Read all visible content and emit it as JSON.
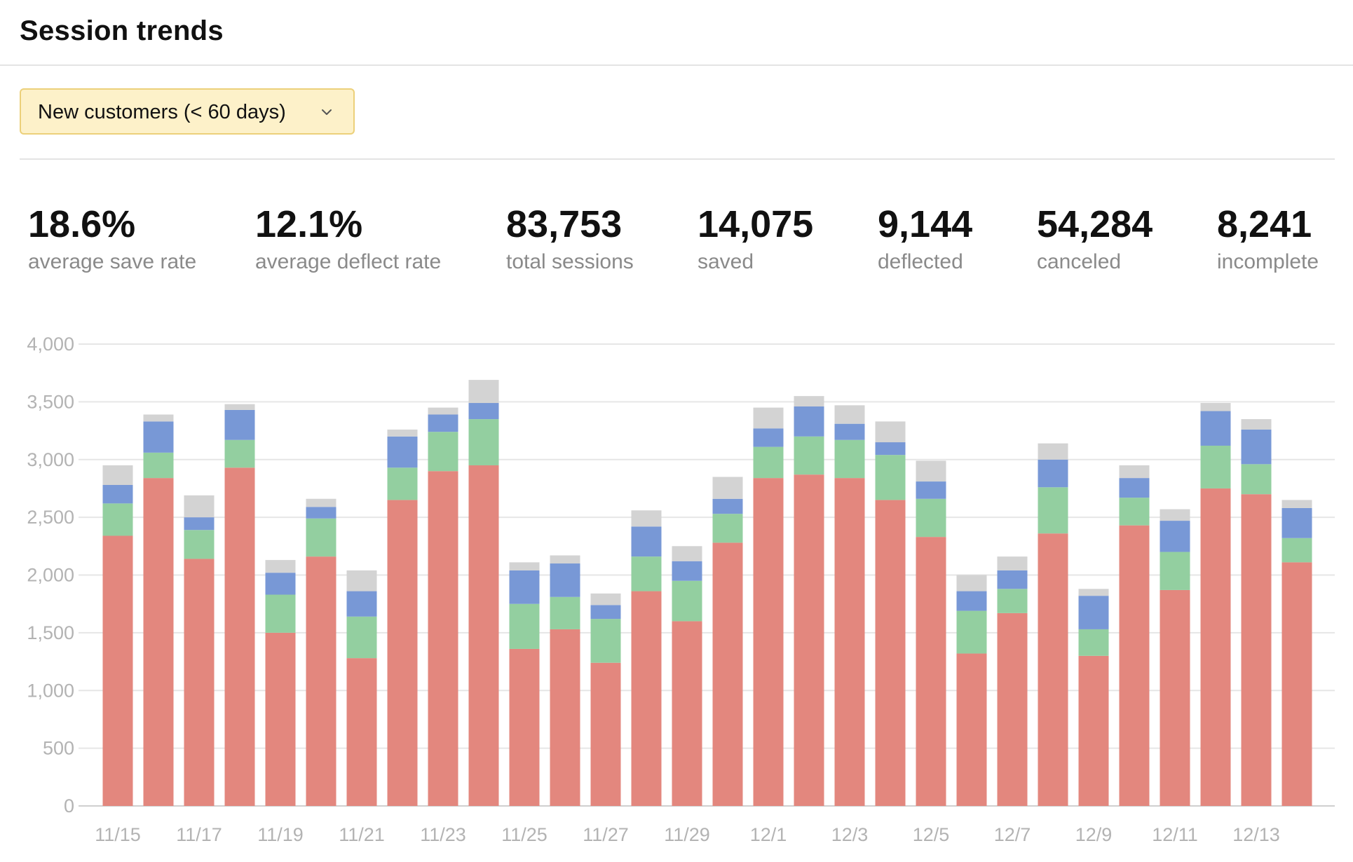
{
  "header": {
    "title": "Session trends"
  },
  "filter": {
    "selected": "New customers (< 60 days)",
    "icon": "chevron-down-icon"
  },
  "stats": [
    {
      "value": "18.6%",
      "label": "average save rate"
    },
    {
      "value": "12.1%",
      "label": "average deflect rate"
    },
    {
      "value": "83,753",
      "label": "total sessions"
    },
    {
      "value": "14,075",
      "label": "saved"
    },
    {
      "value": "9,144",
      "label": "deflected"
    },
    {
      "value": "54,284",
      "label": "canceled"
    },
    {
      "value": "8,241",
      "label": "incomplete"
    }
  ],
  "colors": {
    "canceled": "#e3877e",
    "deflected": "#93cfa0",
    "saved": "#7898d6",
    "incomplete": "#d3d3d3"
  },
  "chart_data": {
    "type": "bar",
    "stacked": true,
    "title": "",
    "xlabel": "",
    "ylabel": "",
    "ylim": [
      0,
      4000
    ],
    "yticks": [
      0,
      500,
      1000,
      1500,
      2000,
      2500,
      3000,
      3500,
      4000
    ],
    "ytick_labels": [
      "0",
      "500",
      "1,000",
      "1,500",
      "2,000",
      "2,500",
      "3,000",
      "3,500",
      "4,000"
    ],
    "grid": true,
    "categories": [
      "11/15",
      "11/16",
      "11/17",
      "11/18",
      "11/19",
      "11/20",
      "11/21",
      "11/22",
      "11/23",
      "11/24",
      "11/25",
      "11/26",
      "11/27",
      "11/28",
      "11/29",
      "11/30",
      "12/1",
      "12/2",
      "12/3",
      "12/4",
      "12/5",
      "12/6",
      "12/7",
      "12/8",
      "12/9",
      "12/10",
      "12/11",
      "12/12",
      "12/13",
      "12/14"
    ],
    "xtick_labels": [
      "11/15",
      "11/17",
      "11/19",
      "11/21",
      "11/23",
      "11/25",
      "11/27",
      "11/29",
      "12/1",
      "12/3",
      "12/5",
      "12/7",
      "12/9",
      "12/11",
      "12/13"
    ],
    "series": [
      {
        "key": "canceled",
        "values": [
          2340,
          2840,
          2140,
          2930,
          1500,
          2160,
          1280,
          2650,
          2900,
          2950,
          1360,
          1530,
          1240,
          1860,
          1600,
          2280,
          2840,
          2870,
          2840,
          2650,
          2330,
          1320,
          1670,
          2360,
          1300,
          2430,
          1870,
          2750,
          2700,
          2110
        ]
      },
      {
        "key": "deflected",
        "values": [
          280,
          220,
          250,
          240,
          330,
          330,
          360,
          280,
          340,
          400,
          390,
          280,
          380,
          300,
          350,
          250,
          270,
          330,
          330,
          390,
          330,
          370,
          210,
          400,
          230,
          240,
          330,
          370,
          260,
          210
        ]
      },
      {
        "key": "saved",
        "values": [
          160,
          270,
          110,
          260,
          190,
          100,
          220,
          270,
          150,
          140,
          290,
          290,
          120,
          260,
          170,
          130,
          160,
          260,
          140,
          110,
          150,
          170,
          160,
          240,
          290,
          170,
          270,
          300,
          300,
          260
        ]
      },
      {
        "key": "incomplete",
        "values": [
          170,
          60,
          190,
          50,
          110,
          70,
          180,
          60,
          60,
          200,
          70,
          70,
          100,
          140,
          130,
          190,
          180,
          90,
          160,
          180,
          180,
          140,
          120,
          140,
          60,
          110,
          100,
          70,
          90,
          70
        ]
      }
    ]
  }
}
